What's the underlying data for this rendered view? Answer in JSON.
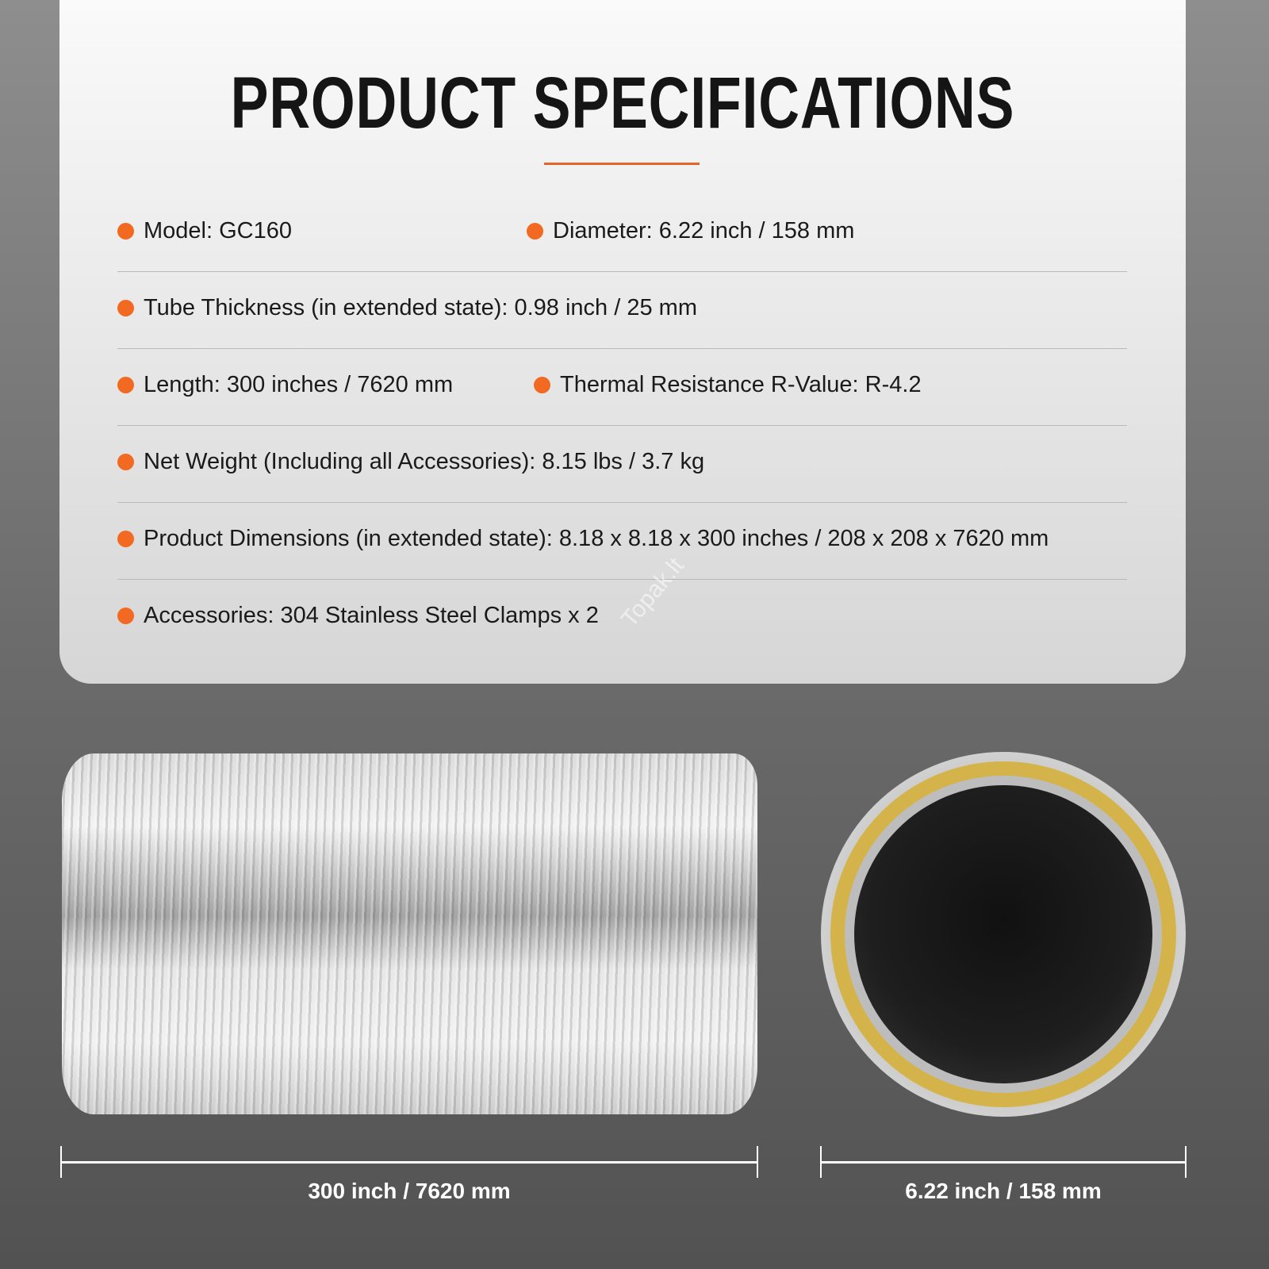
{
  "title": "PRODUCT SPECIFICATIONS",
  "accent_color": "#f26a21",
  "specs": [
    [
      {
        "label": "Model:",
        "value": "GC160"
      },
      {
        "label": "Diameter:",
        "value": "6.22 inch / 158 mm"
      }
    ],
    [
      {
        "label": "Tube Thickness (in extended state):",
        "value": "0.98 inch / 25 mm"
      }
    ],
    [
      {
        "label": "Length:",
        "value": "300 inches / 7620 mm"
      },
      {
        "label": "Thermal Resistance R-Value:",
        "value": "R-4.2"
      }
    ],
    [
      {
        "label": "Net Weight (Including all Accessories):",
        "value": "8.15 lbs / 3.7 kg"
      }
    ],
    [
      {
        "label": "Product Dimensions (in extended state):",
        "value": "8.18 x 8.18 x 300 inches / 208 x 208 x 7620 mm"
      }
    ],
    [
      {
        "label": "Accessories:",
        "value": "304 Stainless Steel Clamps x 2"
      }
    ]
  ],
  "watermark": "Topak.lt",
  "dimensions": {
    "length_label": "300 inch / 7620 mm",
    "diameter_label": "6.22 inch / 158 mm"
  }
}
